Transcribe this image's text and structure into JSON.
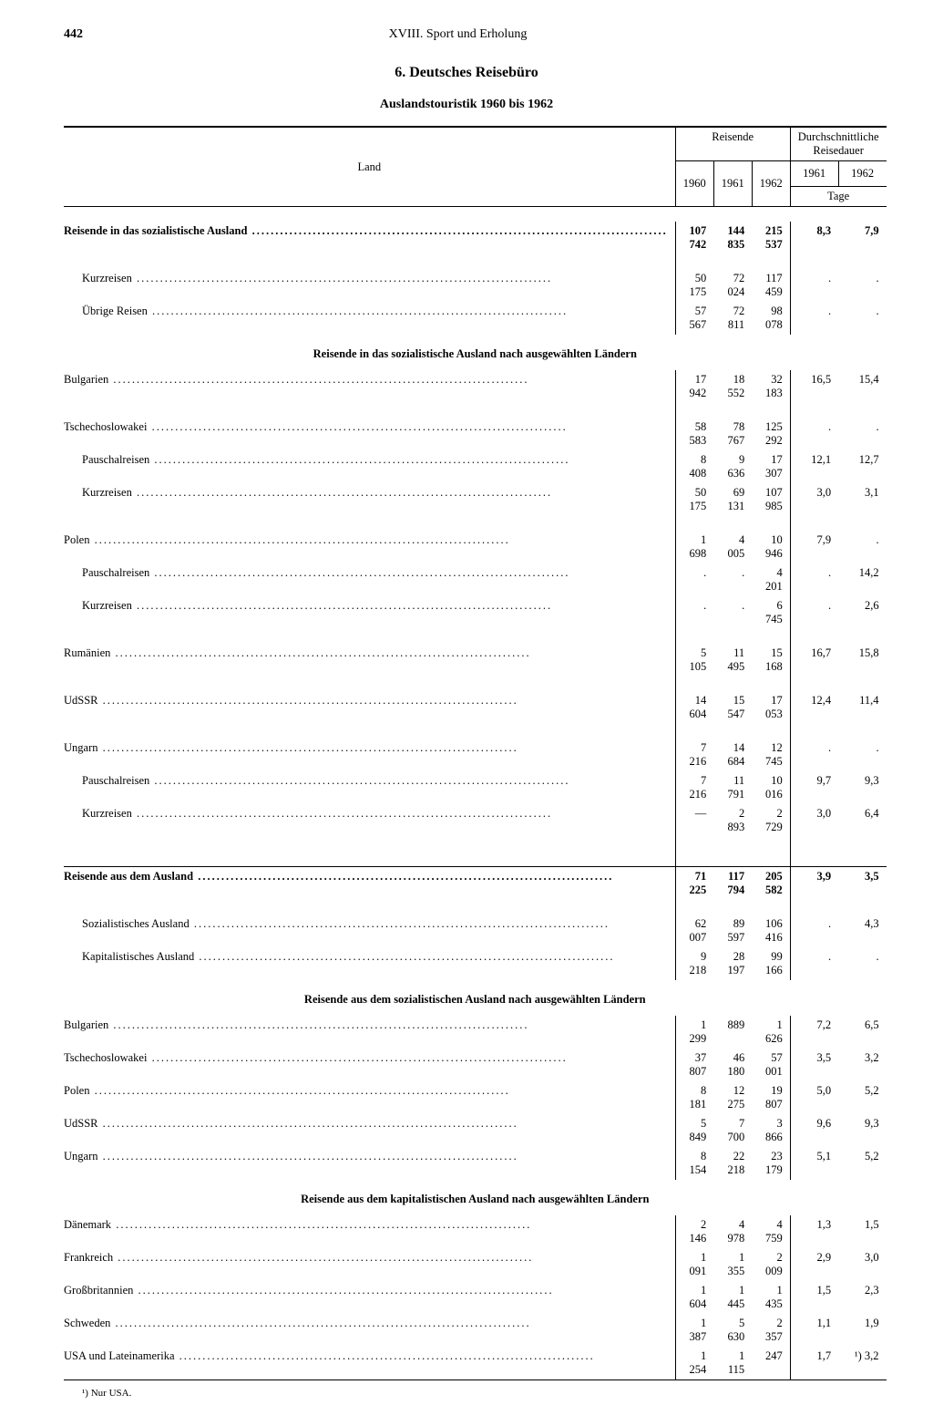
{
  "page_number": "442",
  "running_head": "XVIII. Sport und Erholung",
  "title": "6. Deutsches Reisebüro",
  "subtitle": "Auslandstouristik 1960 bis 1962",
  "headers": {
    "land": "Land",
    "reisende": "Reisende",
    "dauer": "Durchschnittliche Reisedauer",
    "y1960": "1960",
    "y1961": "1961",
    "y1962": "1962",
    "tage": "Tage"
  },
  "sections": [
    {
      "heading": null,
      "rows": [
        {
          "label": "Reisende in das sozialistische Ausland",
          "indent": 0,
          "bold": true,
          "v": [
            "107 742",
            "144 835",
            "215 537",
            "8,3",
            "7,9"
          ]
        },
        {
          "spacer": true
        },
        {
          "label": "Kurzreisen",
          "indent": 1,
          "v": [
            "50 175",
            "72 024",
            "117 459",
            ".",
            "."
          ]
        },
        {
          "label": "Übrige Reisen",
          "indent": 1,
          "v": [
            "57 567",
            "72 811",
            "98 078",
            ".",
            "."
          ]
        }
      ]
    },
    {
      "heading": "Reisende in das sozialistische Ausland nach ausgewählten Ländern",
      "rows": [
        {
          "label": "Bulgarien",
          "indent": 0,
          "v": [
            "17 942",
            "18 552",
            "32 183",
            "16,5",
            "15,4"
          ]
        },
        {
          "spacer": true
        },
        {
          "label": "Tschechoslowakei",
          "indent": 0,
          "v": [
            "58 583",
            "78 767",
            "125 292",
            ".",
            "."
          ]
        },
        {
          "label": "Pauschalreisen",
          "indent": 1,
          "v": [
            "8 408",
            "9 636",
            "17 307",
            "12,1",
            "12,7"
          ]
        },
        {
          "label": "Kurzreisen",
          "indent": 1,
          "v": [
            "50 175",
            "69 131",
            "107 985",
            "3,0",
            "3,1"
          ]
        },
        {
          "spacer": true
        },
        {
          "label": "Polen",
          "indent": 0,
          "v": [
            "1 698",
            "4 005",
            "10 946",
            "7,9",
            "."
          ]
        },
        {
          "label": "Pauschalreisen",
          "indent": 1,
          "v": [
            ".",
            ".",
            "4 201",
            ".",
            "14,2"
          ]
        },
        {
          "label": "Kurzreisen",
          "indent": 1,
          "v": [
            ".",
            ".",
            "6 745",
            ".",
            "2,6"
          ]
        },
        {
          "spacer": true
        },
        {
          "label": "Rumänien",
          "indent": 0,
          "v": [
            "5 105",
            "11 495",
            "15 168",
            "16,7",
            "15,8"
          ]
        },
        {
          "spacer": true
        },
        {
          "label": "UdSSR",
          "indent": 0,
          "v": [
            "14 604",
            "15 547",
            "17 053",
            "12,4",
            "11,4"
          ]
        },
        {
          "spacer": true
        },
        {
          "label": "Ungarn",
          "indent": 0,
          "v": [
            "7 216",
            "14 684",
            "12 745",
            ".",
            "."
          ]
        },
        {
          "label": "Pauschalreisen",
          "indent": 1,
          "v": [
            "7 216",
            "11 791",
            "10 016",
            "9,7",
            "9,3"
          ]
        },
        {
          "label": "Kurzreisen",
          "indent": 1,
          "v": [
            "—",
            "2 893",
            "2 729",
            "3,0",
            "6,4"
          ]
        }
      ]
    },
    {
      "heading": null,
      "divider_before": true,
      "rows": [
        {
          "label": "Reisende aus dem Ausland",
          "indent": 0,
          "bold": true,
          "v": [
            "71 225",
            "117 794",
            "205 582",
            "3,9",
            "3,5"
          ]
        },
        {
          "spacer": true
        },
        {
          "label": "Sozialistisches Ausland",
          "indent": 1,
          "v": [
            "62 007",
            "89 597",
            "106 416",
            ".",
            "4,3"
          ]
        },
        {
          "label": "Kapitalistisches Ausland",
          "indent": 1,
          "v": [
            "9 218",
            "28 197",
            "99 166",
            ".",
            "."
          ]
        }
      ]
    },
    {
      "heading": "Reisende aus dem sozialistischen Ausland nach ausgewählten Ländern",
      "rows": [
        {
          "label": "Bulgarien",
          "indent": 0,
          "v": [
            "1 299",
            "889",
            "1 626",
            "7,2",
            "6,5"
          ]
        },
        {
          "label": "Tschechoslowakei",
          "indent": 0,
          "v": [
            "37 807",
            "46 180",
            "57 001",
            "3,5",
            "3,2"
          ]
        },
        {
          "label": "Polen",
          "indent": 0,
          "v": [
            "8 181",
            "12 275",
            "19 807",
            "5,0",
            "5,2"
          ]
        },
        {
          "label": "UdSSR",
          "indent": 0,
          "v": [
            "5 849",
            "7 700",
            "3 866",
            "9,6",
            "9,3"
          ]
        },
        {
          "label": "Ungarn",
          "indent": 0,
          "v": [
            "8 154",
            "22 218",
            "23 179",
            "5,1",
            "5,2"
          ]
        }
      ]
    },
    {
      "heading": "Reisende aus dem kapitalistischen Ausland nach ausgewählten Ländern",
      "rows": [
        {
          "label": "Dänemark",
          "indent": 0,
          "v": [
            "2 146",
            "4 978",
            "4 759",
            "1,3",
            "1,5"
          ]
        },
        {
          "label": "Frankreich",
          "indent": 0,
          "v": [
            "1 091",
            "1 355",
            "2 009",
            "2,9",
            "3,0"
          ]
        },
        {
          "label": "Großbritannien",
          "indent": 0,
          "v": [
            "1 604",
            "1 445",
            "1 435",
            "1,5",
            "2,3"
          ]
        },
        {
          "label": "Schweden",
          "indent": 0,
          "v": [
            "1 387",
            "5 630",
            "2 357",
            "1,1",
            "1,9"
          ]
        },
        {
          "label": "USA und Lateinamerika",
          "indent": 0,
          "v": [
            "1 254",
            "1 115",
            "247",
            "1,7",
            "¹) 3,2"
          ]
        }
      ]
    }
  ],
  "footnote": "¹) Nur USA."
}
